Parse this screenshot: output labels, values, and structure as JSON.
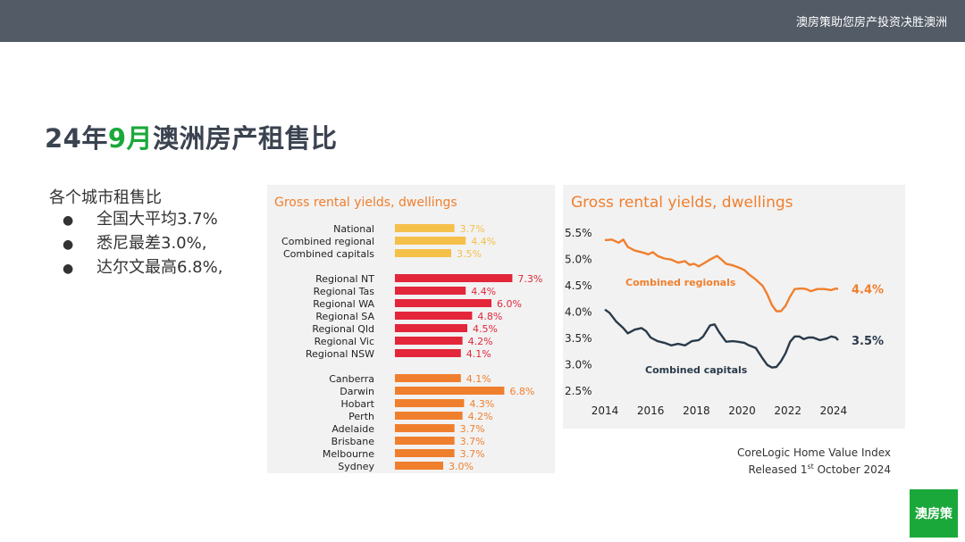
{
  "header": {
    "tagline": "澳房策助您房产投资决胜澳洲"
  },
  "title": {
    "prefix": "24年",
    "highlight": "9月",
    "suffix": "澳洲房产租售比"
  },
  "subtitle": "各个城市租售比",
  "bullets": [
    {
      "marker": "●",
      "text": "全国大平均3.7%"
    },
    {
      "marker": "●",
      "text": "悉尼最差3.0%,"
    },
    {
      "marker": "●",
      "text": "达尔文最高6.8%,"
    }
  ],
  "colors": {
    "green": "#1aa83a",
    "orange": "#f07f2d",
    "navy": "#2a3a4a",
    "yellow": "#f5c04a",
    "red": "#e3263a"
  },
  "chart_data": [
    {
      "type": "bar",
      "orientation": "horizontal",
      "title": "Gross rental yields, dwellings",
      "groups": [
        {
          "color": "#f5c04a",
          "categories": [
            "National",
            "Combined regional",
            "Combined capitals"
          ],
          "values": [
            3.7,
            4.4,
            3.5
          ],
          "labels": [
            "3.7%",
            "4.4%",
            "3.5%"
          ]
        },
        {
          "color": "#e3263a",
          "categories": [
            "Regional NT",
            "Regional Tas",
            "Regional WA",
            "Regional SA",
            "Regional Qld",
            "Regional Vic",
            "Regional NSW"
          ],
          "values": [
            7.3,
            4.4,
            6.0,
            4.8,
            4.5,
            4.2,
            4.1
          ],
          "labels": [
            "7.3%",
            "4.4%",
            "6.0%",
            "4.8%",
            "4.5%",
            "4.2%",
            "4.1%"
          ]
        },
        {
          "color": "#f07f2d",
          "categories": [
            "Canberra",
            "Darwin",
            "Hobart",
            "Perth",
            "Adelaide",
            "Brisbane",
            "Melbourne",
            "Sydney"
          ],
          "values": [
            4.1,
            6.8,
            4.3,
            4.2,
            3.7,
            3.7,
            3.7,
            3.0
          ],
          "labels": [
            "4.1%",
            "6.8%",
            "4.3%",
            "4.2%",
            "3.7%",
            "3.7%",
            "3.7%",
            "3.0%"
          ]
        }
      ]
    },
    {
      "type": "line",
      "title": "Gross rental yields, dwellings",
      "y_ticks": [
        "5.5%",
        "5.0%",
        "4.5%",
        "4.0%",
        "3.5%",
        "3.0%",
        "2.5%"
      ],
      "ylim": [
        2.5,
        5.5
      ],
      "x_ticks": [
        "2014",
        "2016",
        "2018",
        "2020",
        "2022",
        "2024"
      ],
      "xlim": [
        2014,
        2024.2
      ],
      "series": [
        {
          "name": "Combined regionals",
          "end_label": "4.4%",
          "color": "#f07f2d",
          "points": [
            [
              2014.0,
              5.35
            ],
            [
              2014.3,
              5.36
            ],
            [
              2014.6,
              5.3
            ],
            [
              2014.8,
              5.36
            ],
            [
              2015.0,
              5.22
            ],
            [
              2015.3,
              5.15
            ],
            [
              2015.6,
              5.12
            ],
            [
              2015.9,
              5.08
            ],
            [
              2016.1,
              5.12
            ],
            [
              2016.3,
              5.05
            ],
            [
              2016.6,
              5.0
            ],
            [
              2016.9,
              4.98
            ],
            [
              2017.2,
              4.92
            ],
            [
              2017.5,
              4.95
            ],
            [
              2017.7,
              4.88
            ],
            [
              2017.9,
              4.9
            ],
            [
              2018.1,
              4.85
            ],
            [
              2018.3,
              4.9
            ],
            [
              2018.6,
              4.98
            ],
            [
              2018.9,
              5.05
            ],
            [
              2019.1,
              4.98
            ],
            [
              2019.3,
              4.9
            ],
            [
              2019.6,
              4.87
            ],
            [
              2019.9,
              4.82
            ],
            [
              2020.1,
              4.78
            ],
            [
              2020.3,
              4.7
            ],
            [
              2020.6,
              4.6
            ],
            [
              2020.9,
              4.48
            ],
            [
              2021.1,
              4.32
            ],
            [
              2021.3,
              4.12
            ],
            [
              2021.5,
              4.0
            ],
            [
              2021.7,
              4.0
            ],
            [
              2021.9,
              4.1
            ],
            [
              2022.1,
              4.28
            ],
            [
              2022.3,
              4.42
            ],
            [
              2022.6,
              4.43
            ],
            [
              2022.8,
              4.42
            ],
            [
              2023.0,
              4.38
            ],
            [
              2023.3,
              4.42
            ],
            [
              2023.6,
              4.42
            ],
            [
              2023.9,
              4.4
            ],
            [
              2024.1,
              4.43
            ],
            [
              2024.2,
              4.42
            ]
          ]
        },
        {
          "name": "Combined capitals",
          "end_label": "3.5%",
          "color": "#2a3a4a",
          "points": [
            [
              2014.0,
              4.03
            ],
            [
              2014.2,
              3.97
            ],
            [
              2014.5,
              3.8
            ],
            [
              2014.8,
              3.68
            ],
            [
              2015.0,
              3.58
            ],
            [
              2015.3,
              3.65
            ],
            [
              2015.6,
              3.68
            ],
            [
              2015.8,
              3.62
            ],
            [
              2016.0,
              3.5
            ],
            [
              2016.3,
              3.43
            ],
            [
              2016.6,
              3.4
            ],
            [
              2016.9,
              3.35
            ],
            [
              2017.2,
              3.38
            ],
            [
              2017.5,
              3.35
            ],
            [
              2017.8,
              3.43
            ],
            [
              2018.1,
              3.45
            ],
            [
              2018.3,
              3.52
            ],
            [
              2018.6,
              3.73
            ],
            [
              2018.8,
              3.75
            ],
            [
              2019.0,
              3.6
            ],
            [
              2019.3,
              3.42
            ],
            [
              2019.6,
              3.43
            ],
            [
              2019.8,
              3.42
            ],
            [
              2020.1,
              3.4
            ],
            [
              2020.3,
              3.35
            ],
            [
              2020.6,
              3.3
            ],
            [
              2020.9,
              3.1
            ],
            [
              2021.1,
              2.98
            ],
            [
              2021.3,
              2.93
            ],
            [
              2021.5,
              2.94
            ],
            [
              2021.7,
              3.05
            ],
            [
              2021.9,
              3.2
            ],
            [
              2022.1,
              3.42
            ],
            [
              2022.3,
              3.52
            ],
            [
              2022.5,
              3.52
            ],
            [
              2022.7,
              3.47
            ],
            [
              2022.9,
              3.5
            ],
            [
              2023.1,
              3.5
            ],
            [
              2023.4,
              3.45
            ],
            [
              2023.7,
              3.48
            ],
            [
              2023.9,
              3.52
            ],
            [
              2024.1,
              3.5
            ],
            [
              2024.2,
              3.45
            ]
          ]
        }
      ]
    }
  ],
  "source": {
    "line1": "CoreLogic Home Value Index",
    "line2_pre": "Released 1",
    "line2_sup": "st",
    "line2_post": " October 2024"
  },
  "logo": {
    "text": "澳房策"
  }
}
